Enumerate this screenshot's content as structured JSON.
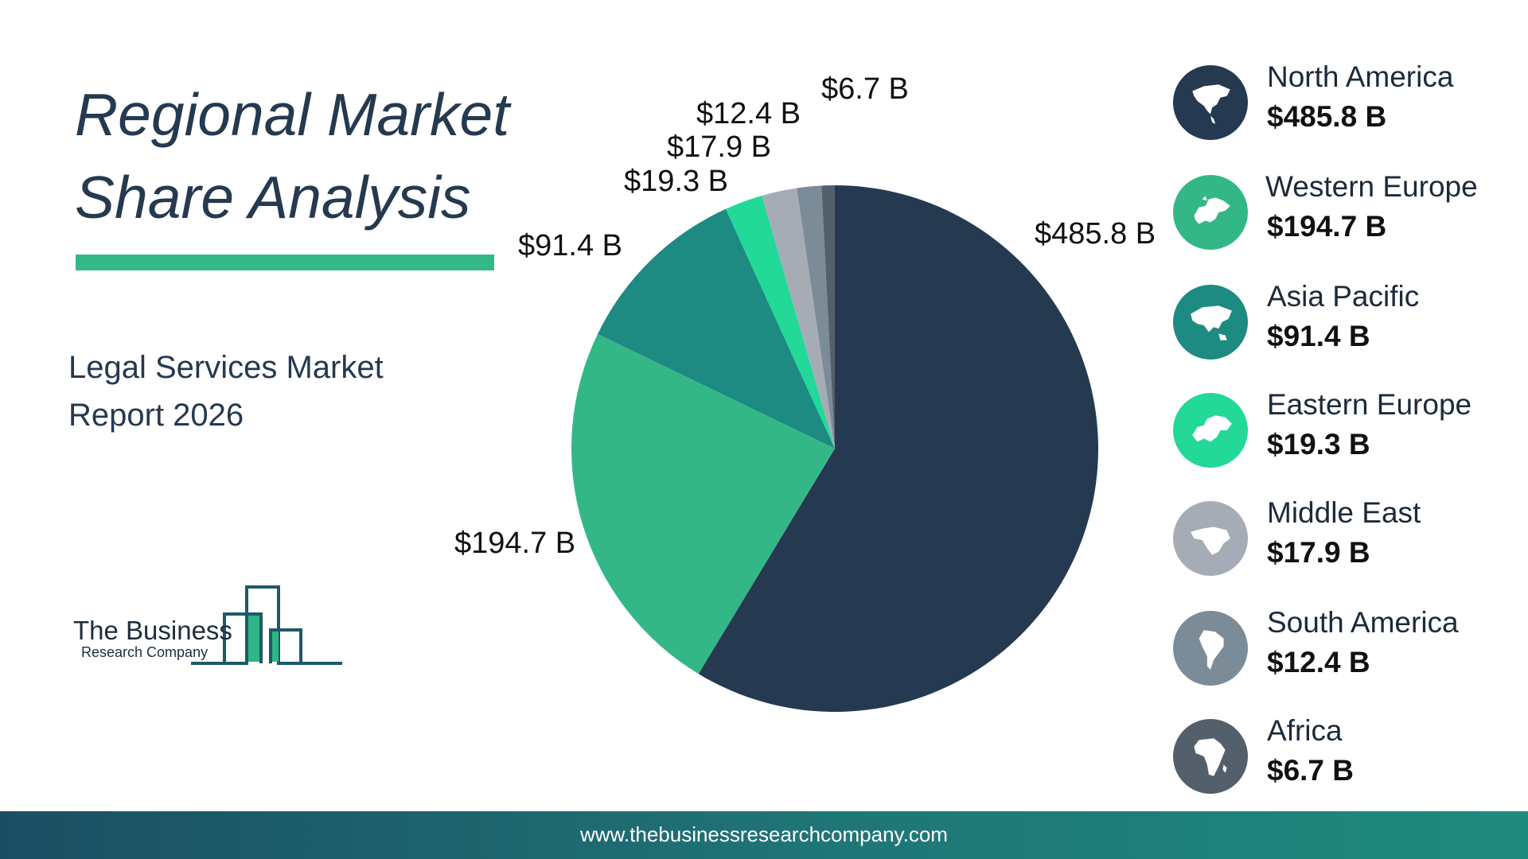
{
  "header": {
    "title_line1": "Regional Market",
    "title_line2": "Share Analysis",
    "subtitle_line1": "Legal Services Market",
    "subtitle_line2": "Report 2026",
    "accent_color": "#33b887"
  },
  "logo": {
    "line1": "The Business",
    "line2": "Research Company"
  },
  "chart_data": {
    "type": "pie",
    "title": "",
    "categories": [
      "North America",
      "Western Europe",
      "Asia Pacific",
      "Eastern Europe",
      "Middle East",
      "South America",
      "Africa"
    ],
    "values": [
      485.8,
      194.7,
      91.4,
      19.3,
      17.9,
      12.4,
      6.7
    ],
    "value_labels": [
      "$485.8 B",
      "$194.7 B",
      "$91.4 B",
      "$19.3 B",
      "$17.9 B",
      "$12.4 B",
      "$6.7 B"
    ],
    "unit": "B",
    "colors": [
      "#253a50",
      "#34b787",
      "#1d8b82",
      "#22d997",
      "#a6acb5",
      "#7c8b98",
      "#545f6c"
    ],
    "legend_placement": "right"
  },
  "legend": [
    {
      "name": "North America",
      "value": "$485.8 B",
      "icon": "north-america-map-icon",
      "color": "#253a50"
    },
    {
      "name": "Western Europe",
      "value": "$194.7 B",
      "icon": "western-europe-map-icon",
      "color": "#34b787"
    },
    {
      "name": "Asia Pacific",
      "value": "$91.4 B",
      "icon": "asia-pacific-map-icon",
      "color": "#1d8b82"
    },
    {
      "name": "Eastern Europe",
      "value": "$19.3 B",
      "icon": "eastern-europe-map-icon",
      "color": "#22d997"
    },
    {
      "name": "Middle East",
      "value": "$17.9 B",
      "icon": "middle-east-map-icon",
      "color": "#a6acb5"
    },
    {
      "name": "South America",
      "value": "$12.4 B",
      "icon": "south-america-map-icon",
      "color": "#7c8b98"
    },
    {
      "name": "Africa",
      "value": "$6.7 B",
      "icon": "africa-map-icon",
      "color": "#545f6c"
    }
  ],
  "footer": {
    "url": "www.thebusinessresearchcompany.com"
  }
}
